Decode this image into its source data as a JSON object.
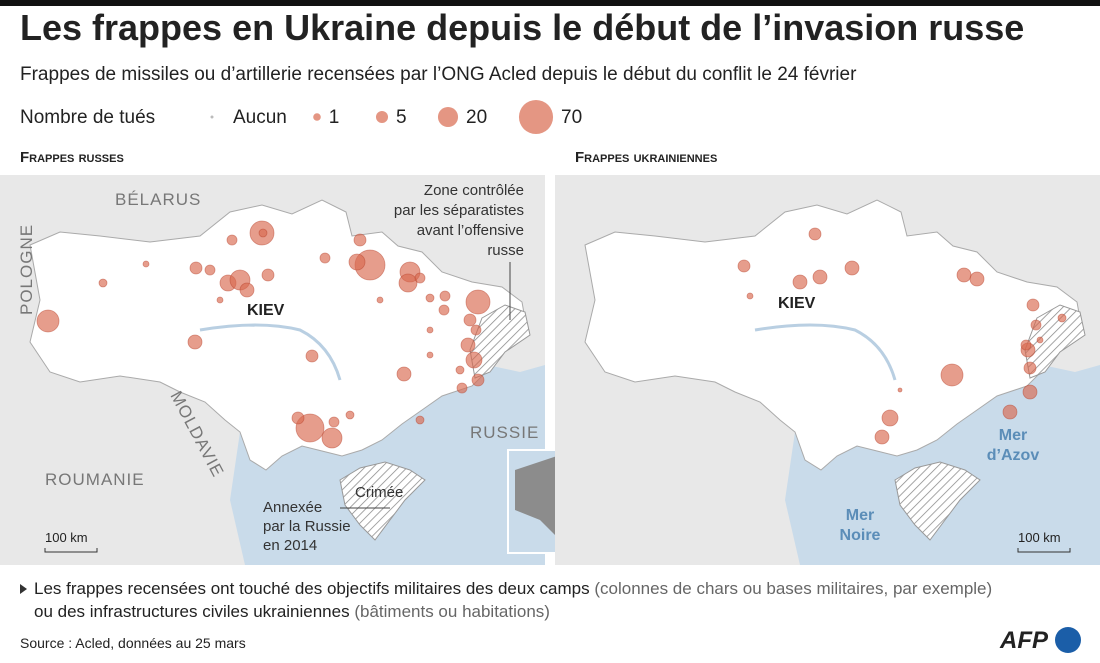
{
  "header": {
    "title": "Les frappes en Ukraine depuis le début de l’invasion russe",
    "subtitle": "Frappes de missiles ou d’artillerie recensées par l’ONG Acled depuis le début du conflit le 24 février"
  },
  "legend": {
    "title": "Nombre de tués",
    "none": "Aucun",
    "values": [
      1,
      5,
      20,
      70
    ]
  },
  "panels": [
    {
      "title": "Frappes russes",
      "labels": {
        "belarus": "BÉLARUS",
        "pologne": "POLOGNE",
        "kiev": "KIEV",
        "moldavie": "MOLDAVIE",
        "roumanie": "ROUMANIE",
        "russie": "RUSSIE",
        "zone": [
          "Zone contrôlée",
          "par les séparatistes",
          "avant l’offensive",
          "russe"
        ],
        "crimee": "Crimée",
        "annexee": [
          "Annexée",
          "par la Russie",
          "en 2014"
        ],
        "scale": "100 km"
      }
    },
    {
      "title": "Frappes ukrainiennes",
      "labels": {
        "kiev": "KIEV",
        "azov": [
          "Mer",
          "d’Azov"
        ],
        "noire": [
          "Mer",
          "Noire"
        ],
        "scale": "100 km"
      }
    }
  ],
  "note": {
    "main1": "Les frappes recensées ont touché des objectifs militaires des deux camps",
    "aside1": "(colonnes de chars ou bases militaires, par exemple)",
    "main2": "ou des infrastructures civiles ukrainiennes",
    "aside2": "(bâtiments ou habitations)"
  },
  "footer": {
    "source": "Source : Acled, données au 25 mars",
    "logo": "AFP"
  }
}
